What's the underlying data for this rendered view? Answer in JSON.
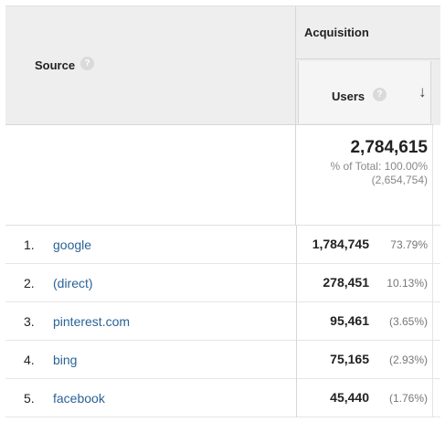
{
  "header": {
    "source_label": "Source",
    "acquisition_label": "Acquisition",
    "users_label": "Users",
    "help_glyph": "?",
    "sort_glyph": "↓"
  },
  "totals": {
    "users": "2,784,615",
    "percent_of_total": "% of Total: 100.00%",
    "overall": "(2,654,754)"
  },
  "rows": [
    {
      "rank": "1.",
      "source": "google",
      "users": "1,784,745",
      "percent": "73.79%"
    },
    {
      "rank": "2.",
      "source": "(direct)",
      "users": "278,451",
      "percent": "10.13%)"
    },
    {
      "rank": "3.",
      "source": "pinterest.com",
      "users": "95,461",
      "percent": "(3.65%)"
    },
    {
      "rank": "4.",
      "source": "bing",
      "users": "75,165",
      "percent": "(2.93%)"
    },
    {
      "rank": "5.",
      "source": "facebook",
      "users": "45,440",
      "percent": "(1.76%)"
    }
  ],
  "colors": {
    "header_bg": "#eeeeee",
    "link": "#2a6398",
    "muted": "#888888"
  }
}
